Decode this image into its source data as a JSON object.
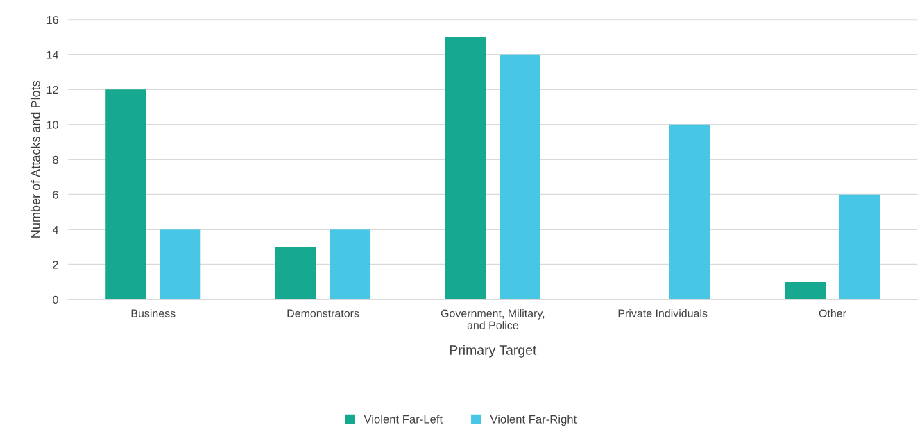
{
  "chart_data": {
    "type": "bar",
    "xlabel": "Primary Target",
    "ylabel": "Number of Attacks and Plots",
    "categories": [
      "Business",
      "Demonstrators",
      "Government, Military,\nand Police",
      "Private Individuals",
      "Other"
    ],
    "series": [
      {
        "name": "Violent Far-Left",
        "color": "#17a98f",
        "values": [
          12,
          3,
          15,
          0,
          1
        ]
      },
      {
        "name": "Violent Far-Right",
        "color": "#48c6e6",
        "values": [
          4,
          4,
          14,
          10,
          6
        ]
      }
    ],
    "ylim": [
      0,
      16
    ],
    "yticks": [
      0,
      2,
      4,
      6,
      8,
      10,
      12,
      14,
      16
    ],
    "grid": "y",
    "legend": "bottom"
  }
}
